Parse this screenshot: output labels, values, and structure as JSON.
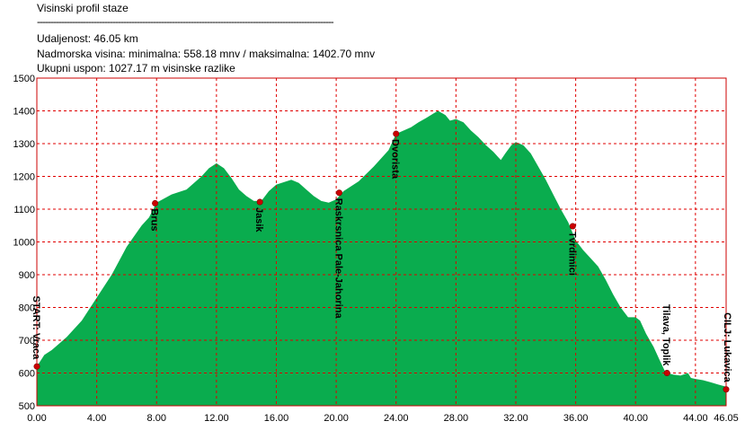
{
  "header": {
    "title": "Visinski profil staze",
    "divider": "--------------------------------------------------------------------------------------------------------------",
    "distance": "Udaljenost: 46.05 km",
    "elevation": "Nadmorska visina:  minimalna: 558.18 mnv   /  maksimalna: 1402.70 mnv",
    "ascent": "Ukupni uspon: 1027.17 m visinske razlike"
  },
  "colors": {
    "fill": "#0aac4e",
    "grid": "#e00000",
    "frame": "#cc0000",
    "marker": "#cc0000"
  },
  "chart_data": {
    "type": "area",
    "xlim": [
      0,
      46.05
    ],
    "ylim": [
      500,
      1500
    ],
    "x_ticks": [
      "0.00",
      "4.00",
      "8.00",
      "12.00",
      "16.00",
      "20.00",
      "24.00",
      "28.00",
      "32.00",
      "36.00",
      "40.00",
      "44.00",
      "46.05"
    ],
    "y_ticks": [
      "1500",
      "1400",
      "1300",
      "1200",
      "1100",
      "1000",
      "900",
      "800",
      "700",
      "600",
      "500"
    ],
    "grid": true,
    "profile": [
      [
        0,
        620
      ],
      [
        0.5,
        655
      ],
      [
        1,
        670
      ],
      [
        2,
        710
      ],
      [
        3,
        760
      ],
      [
        4,
        830
      ],
      [
        5,
        900
      ],
      [
        6,
        985
      ],
      [
        7,
        1050
      ],
      [
        7.5,
        1075
      ],
      [
        8,
        1120
      ],
      [
        9,
        1145
      ],
      [
        10,
        1160
      ],
      [
        11,
        1200
      ],
      [
        11.5,
        1225
      ],
      [
        12,
        1240
      ],
      [
        12.5,
        1225
      ],
      [
        13,
        1195
      ],
      [
        13.5,
        1160
      ],
      [
        14,
        1140
      ],
      [
        14.5,
        1125
      ],
      [
        15,
        1125
      ],
      [
        15.5,
        1155
      ],
      [
        16,
        1175
      ],
      [
        17,
        1190
      ],
      [
        17.5,
        1180
      ],
      [
        18,
        1160
      ],
      [
        18.5,
        1140
      ],
      [
        19,
        1125
      ],
      [
        19.5,
        1120
      ],
      [
        20,
        1130
      ],
      [
        20.5,
        1155
      ],
      [
        21.5,
        1185
      ],
      [
        22.5,
        1230
      ],
      [
        23.5,
        1280
      ],
      [
        24,
        1330
      ],
      [
        25,
        1350
      ],
      [
        25.5,
        1365
      ],
      [
        26,
        1378
      ],
      [
        26.5,
        1392
      ],
      [
        26.8,
        1400
      ],
      [
        27.3,
        1387
      ],
      [
        27.6,
        1370
      ],
      [
        28,
        1375
      ],
      [
        28.5,
        1365
      ],
      [
        29,
        1340
      ],
      [
        29.5,
        1320
      ],
      [
        30,
        1295
      ],
      [
        30.5,
        1275
      ],
      [
        31,
        1250
      ],
      [
        31.3,
        1270
      ],
      [
        31.7,
        1295
      ],
      [
        32,
        1305
      ],
      [
        32.5,
        1295
      ],
      [
        33,
        1270
      ],
      [
        33.5,
        1230
      ],
      [
        34,
        1190
      ],
      [
        34.5,
        1145
      ],
      [
        35,
        1100
      ],
      [
        35.5,
        1060
      ],
      [
        36,
        1005
      ],
      [
        36.5,
        975
      ],
      [
        37,
        950
      ],
      [
        37.5,
        925
      ],
      [
        38,
        885
      ],
      [
        38.5,
        840
      ],
      [
        39,
        800
      ],
      [
        39.5,
        770
      ],
      [
        40,
        770
      ],
      [
        40.3,
        760
      ],
      [
        40.7,
        720
      ],
      [
        41.2,
        680
      ],
      [
        41.6,
        640
      ],
      [
        42,
        602
      ],
      [
        42.5,
        595
      ],
      [
        43,
        592
      ],
      [
        43.5,
        600
      ],
      [
        43.7,
        585
      ],
      [
        44,
        582
      ],
      [
        44.5,
        578
      ],
      [
        45,
        572
      ],
      [
        45.5,
        565
      ],
      [
        46.05,
        558
      ]
    ],
    "waypoints": [
      {
        "x": 0.0,
        "y": 620,
        "label": "START: Vraca"
      },
      {
        "x": 7.9,
        "y": 1118,
        "label": "Brus"
      },
      {
        "x": 14.9,
        "y": 1122,
        "label": "Jasik"
      },
      {
        "x": 20.2,
        "y": 1150,
        "label": "Raskrsnica Pale-Jahorina"
      },
      {
        "x": 24.0,
        "y": 1330,
        "label": "Dvorista"
      },
      {
        "x": 35.8,
        "y": 1048,
        "label": "Tvrdimici"
      },
      {
        "x": 42.1,
        "y": 600,
        "label": "Tilava, Toplik"
      },
      {
        "x": 46.05,
        "y": 550,
        "label": "CILJ: Lukavica"
      }
    ]
  }
}
